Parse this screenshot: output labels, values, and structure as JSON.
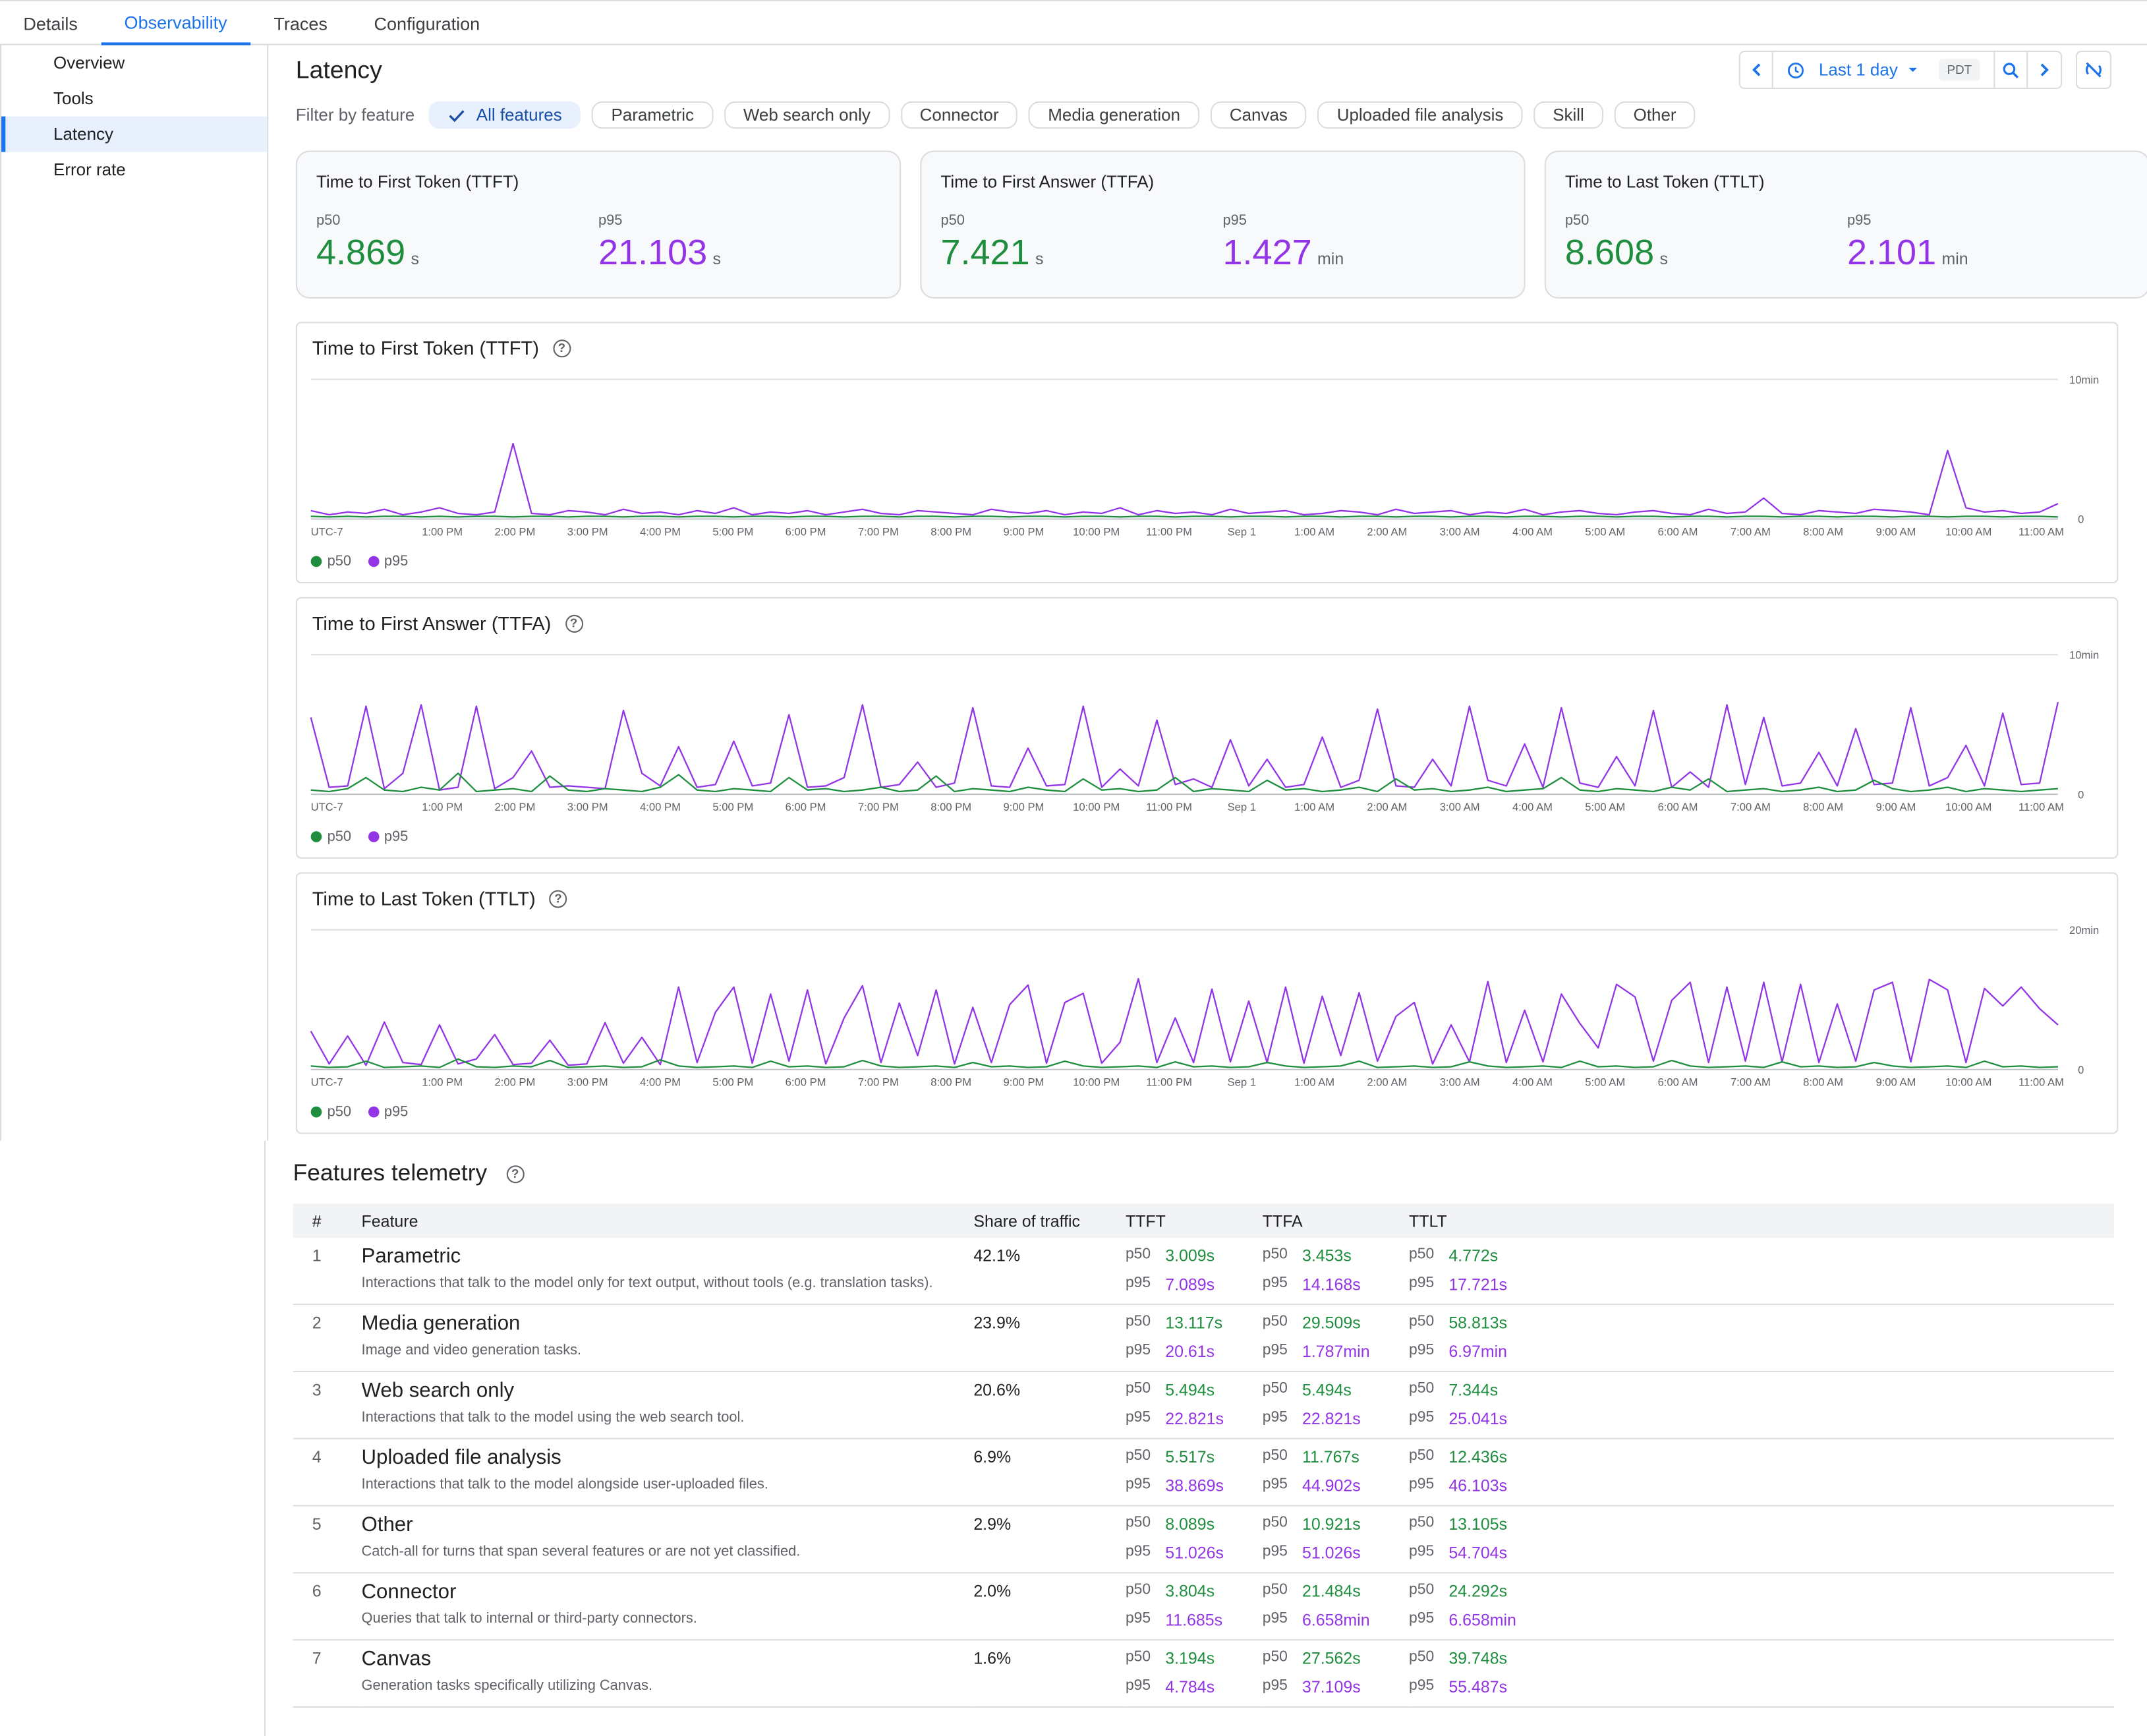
{
  "tabs": [
    "Details",
    "Observability",
    "Traces",
    "Configuration"
  ],
  "sidebar": [
    "Overview",
    "Tools",
    "Latency",
    "Error rate"
  ],
  "page_title": "Latency",
  "timebar": {
    "range": "Last 1 day",
    "tz": "PDT"
  },
  "filter_label": "Filter by feature",
  "filters": [
    "All features",
    "Parametric",
    "Web search only",
    "Connector",
    "Media generation",
    "Canvas",
    "Uploaded file analysis",
    "Skill",
    "Other"
  ],
  "cards": [
    {
      "title": "Time to First Token (TTFT)",
      "p50": "4.869",
      "p50_unit": "s",
      "p95": "21.103",
      "p95_unit": "s"
    },
    {
      "title": "Time to First Answer (TTFA)",
      "p50": "7.421",
      "p50_unit": "s",
      "p95": "1.427",
      "p95_unit": "min"
    },
    {
      "title": "Time to Last Token (TTLT)",
      "p50": "8.608",
      "p50_unit": "s",
      "p95": "2.101",
      "p95_unit": "min"
    }
  ],
  "p50_label": "p50",
  "p95_label": "p95",
  "colors": {
    "p50": "#1e8e3e",
    "p95": "#9334e6",
    "accent": "#1a73e8"
  },
  "x_ticks": [
    "UTC-7",
    "1:00 PM",
    "2:00 PM",
    "3:00 PM",
    "4:00 PM",
    "5:00 PM",
    "6:00 PM",
    "7:00 PM",
    "8:00 PM",
    "9:00 PM",
    "10:00 PM",
    "11:00 PM",
    "Sep 1",
    "1:00 AM",
    "2:00 AM",
    "3:00 AM",
    "4:00 AM",
    "5:00 AM",
    "6:00 AM",
    "7:00 AM",
    "8:00 AM",
    "9:00 AM",
    "10:00 AM",
    "11:00 AM"
  ],
  "chart_data": [
    {
      "type": "line",
      "title": "Time to First Token (TTFT)",
      "y_ticks": [
        "10min",
        "0"
      ],
      "ylim_min": [
        0,
        10
      ],
      "series": [
        {
          "name": "p50",
          "values": [
            0.2,
            0.15,
            0.2,
            0.15,
            0.2,
            0.2,
            0.15,
            0.2,
            0.15,
            0.2,
            0.2,
            0.15,
            0.2,
            0.2,
            0.15,
            0.2,
            0.2,
            0.15,
            0.2,
            0.2,
            0.15,
            0.2,
            0.2,
            0.15,
            0.2,
            0.2,
            0.15,
            0.2,
            0.2,
            0.15,
            0.2,
            0.2,
            0.15,
            0.2,
            0.2,
            0.15,
            0.2,
            0.2,
            0.15,
            0.2,
            0.2,
            0.15,
            0.2,
            0.2,
            0.15,
            0.2,
            0.2,
            0.15,
            0.2,
            0.2,
            0.15,
            0.2,
            0.2,
            0.15,
            0.2,
            0.2,
            0.15,
            0.2,
            0.2,
            0.15,
            0.2,
            0.2,
            0.15,
            0.2,
            0.2,
            0.15,
            0.2,
            0.2,
            0.15,
            0.2,
            0.2,
            0.15,
            0.2,
            0.2,
            0.15,
            0.2,
            0.2,
            0.15,
            0.2,
            0.2,
            0.15,
            0.2,
            0.2,
            0.15,
            0.2,
            0.2,
            0.15,
            0.2,
            0.2,
            0.15,
            0.2,
            0.2,
            0.15,
            0.2,
            0.2,
            0.15
          ]
        },
        {
          "name": "p95",
          "values": [
            0.6,
            0.3,
            0.5,
            0.4,
            0.7,
            0.3,
            0.5,
            0.8,
            0.4,
            0.3,
            0.5,
            5.4,
            0.4,
            0.3,
            0.6,
            0.5,
            0.3,
            0.7,
            0.4,
            0.5,
            0.3,
            0.6,
            0.4,
            0.8,
            0.3,
            0.5,
            0.4,
            0.6,
            0.3,
            0.5,
            0.7,
            0.4,
            0.3,
            0.6,
            0.5,
            0.4,
            0.3,
            0.7,
            0.5,
            0.4,
            0.6,
            0.3,
            0.5,
            0.4,
            0.8,
            0.3,
            0.6,
            0.4,
            0.5,
            0.3,
            0.7,
            0.4,
            0.5,
            0.6,
            0.3,
            0.4,
            0.6,
            0.5,
            0.3,
            0.7,
            0.4,
            0.5,
            0.6,
            0.3,
            0.5,
            0.4,
            0.7,
            0.3,
            0.5,
            0.6,
            0.4,
            0.3,
            0.5,
            0.6,
            0.4,
            0.3,
            0.7,
            0.4,
            0.5,
            1.5,
            0.4,
            0.3,
            0.6,
            0.5,
            0.4,
            0.7,
            0.6,
            0.5,
            0.3,
            4.9,
            0.8,
            0.5,
            0.6,
            0.4,
            0.5,
            1.1
          ]
        }
      ]
    },
    {
      "type": "line",
      "title": "Time to First Answer (TTFA)",
      "y_ticks": [
        "10min",
        "0"
      ],
      "ylim_min": [
        0,
        10
      ],
      "series": [
        {
          "name": "p50",
          "values": [
            0.3,
            0.2,
            0.4,
            1.2,
            0.3,
            0.2,
            0.5,
            0.3,
            1.5,
            0.2,
            0.3,
            0.4,
            0.2,
            1.3,
            0.3,
            0.2,
            0.4,
            0.3,
            0.2,
            0.5,
            1.4,
            0.3,
            0.2,
            0.4,
            0.3,
            0.2,
            1.2,
            0.3,
            0.4,
            0.2,
            0.3,
            0.5,
            0.2,
            0.3,
            1.3,
            0.2,
            0.4,
            0.3,
            0.2,
            0.5,
            0.3,
            0.2,
            1.1,
            0.3,
            0.4,
            0.2,
            0.3,
            1.2,
            0.2,
            0.4,
            0.3,
            0.2,
            1.0,
            0.3,
            0.4,
            0.2,
            0.3,
            0.5,
            0.2,
            1.1,
            0.3,
            0.4,
            0.2,
            0.3,
            0.5,
            0.2,
            0.3,
            0.4,
            1.2,
            0.3,
            0.2,
            0.4,
            0.3,
            0.2,
            0.5,
            0.3,
            1.1,
            0.2,
            0.3,
            0.4,
            0.2,
            0.3,
            0.5,
            0.2,
            0.3,
            1.0,
            0.4,
            0.2,
            0.3,
            0.5,
            0.2,
            0.4,
            0.3,
            0.2,
            0.3,
            0.4
          ]
        },
        {
          "name": "p95",
          "values": [
            5.5,
            0.5,
            0.6,
            6.3,
            0.4,
            1.5,
            6.4,
            0.3,
            0.5,
            6.3,
            0.4,
            1.2,
            3.1,
            0.5,
            0.6,
            0.5,
            0.4,
            6.0,
            1.5,
            0.6,
            3.4,
            0.5,
            0.7,
            3.8,
            0.6,
            0.8,
            5.7,
            0.5,
            0.6,
            1.2,
            6.4,
            0.5,
            0.7,
            2.3,
            0.5,
            0.8,
            6.2,
            0.6,
            0.5,
            3.3,
            0.6,
            0.7,
            6.3,
            0.5,
            1.8,
            0.6,
            5.3,
            0.7,
            1.1,
            0.5,
            3.9,
            0.6,
            2.5,
            0.5,
            0.7,
            4.1,
            0.5,
            1.0,
            6.1,
            0.6,
            0.5,
            2.5,
            0.6,
            6.3,
            1.0,
            0.6,
            3.6,
            0.5,
            6.2,
            0.8,
            0.5,
            2.7,
            0.6,
            6.0,
            0.5,
            1.6,
            0.5,
            6.4,
            0.7,
            5.5,
            0.6,
            0.8,
            3.0,
            0.6,
            4.7,
            0.7,
            0.8,
            6.2,
            0.6,
            1.2,
            3.5,
            0.6,
            5.8,
            0.7,
            0.8,
            6.6
          ]
        }
      ]
    },
    {
      "type": "line",
      "title": "Time to Last Token (TTLT)",
      "y_ticks": [
        "20min",
        "0"
      ],
      "ylim_min": [
        0,
        20
      ],
      "series": [
        {
          "name": "p50",
          "values": [
            0.5,
            0.3,
            0.4,
            1.2,
            0.3,
            0.4,
            0.5,
            0.3,
            1.5,
            0.4,
            0.3,
            0.5,
            0.4,
            1.3,
            0.3,
            0.4,
            0.5,
            0.3,
            0.4,
            1.4,
            0.5,
            0.3,
            0.4,
            0.5,
            0.3,
            1.2,
            0.4,
            0.5,
            0.3,
            0.4,
            1.3,
            0.5,
            0.3,
            0.4,
            0.5,
            0.3,
            1.0,
            0.4,
            0.5,
            0.3,
            0.4,
            1.2,
            0.5,
            0.3,
            0.4,
            0.5,
            0.3,
            1.1,
            0.4,
            0.5,
            0.3,
            0.4,
            1.0,
            0.5,
            0.3,
            0.4,
            0.5,
            1.2,
            0.3,
            0.4,
            0.5,
            0.3,
            0.4,
            1.1,
            0.5,
            0.3,
            0.4,
            0.5,
            0.3,
            1.2,
            0.4,
            0.5,
            0.3,
            0.4,
            1.3,
            0.5,
            0.3,
            0.4,
            0.5,
            0.3,
            1.1,
            0.4,
            0.5,
            0.3,
            0.4,
            1.0,
            0.5,
            0.3,
            0.4,
            0.5,
            0.3,
            1.2,
            0.4,
            0.5,
            0.3,
            0.4
          ]
        },
        {
          "name": "p95",
          "values": [
            5.5,
            0.8,
            4.8,
            0.6,
            6.8,
            1.0,
            0.7,
            6.4,
            0.8,
            1.5,
            5.0,
            0.7,
            0.9,
            4.2,
            0.6,
            0.8,
            6.7,
            0.9,
            4.6,
            0.7,
            11.8,
            1.0,
            8.2,
            11.8,
            0.9,
            10.8,
            1.2,
            11.4,
            0.8,
            7.4,
            12.0,
            1.0,
            9.5,
            2.0,
            11.4,
            0.8,
            8.9,
            1.0,
            9.3,
            12.1,
            0.9,
            9.6,
            10.9,
            0.9,
            3.9,
            13.0,
            1.0,
            7.4,
            1.0,
            11.5,
            1.1,
            9.8,
            1.0,
            11.8,
            0.9,
            10.5,
            2.0,
            11.0,
            1.2,
            7.6,
            9.6,
            0.8,
            6.4,
            1.1,
            12.6,
            1.0,
            8.5,
            1.1,
            10.8,
            6.6,
            3.1,
            12.2,
            10.4,
            1.2,
            9.9,
            12.5,
            1.0,
            11.8,
            1.2,
            12.5,
            1.1,
            12.2,
            1.0,
            9.4,
            1.2,
            11.4,
            12.5,
            1.1,
            12.9,
            11.4,
            1.0,
            11.6,
            9.1,
            11.8,
            8.7,
            6.4
          ]
        }
      ]
    }
  ],
  "features": {
    "title": "Features telemetry",
    "headers": [
      "#",
      "Feature",
      "Share of traffic",
      "TTFT",
      "TTFA",
      "TTLT"
    ],
    "rows": [
      {
        "n": "1",
        "name": "Parametric",
        "desc": "Interactions that talk to the model only for text output, without tools (e.g. translation tasks).",
        "share": "42.1%",
        "ttft": [
          "3.009s",
          "7.089s"
        ],
        "ttfa": [
          "3.453s",
          "14.168s"
        ],
        "ttlt": [
          "4.772s",
          "17.721s"
        ]
      },
      {
        "n": "2",
        "name": "Media generation",
        "desc": "Image and video generation tasks.",
        "share": "23.9%",
        "ttft": [
          "13.117s",
          "20.61s"
        ],
        "ttfa": [
          "29.509s",
          "1.787min"
        ],
        "ttlt": [
          "58.813s",
          "6.97min"
        ]
      },
      {
        "n": "3",
        "name": "Web search only",
        "desc": "Interactions that talk to the model using the web search tool.",
        "share": "20.6%",
        "ttft": [
          "5.494s",
          "22.821s"
        ],
        "ttfa": [
          "5.494s",
          "22.821s"
        ],
        "ttlt": [
          "7.344s",
          "25.041s"
        ]
      },
      {
        "n": "4",
        "name": "Uploaded file analysis",
        "desc": "Interactions that talk to the model alongside user-uploaded files.",
        "share": "6.9%",
        "ttft": [
          "5.517s",
          "38.869s"
        ],
        "ttfa": [
          "11.767s",
          "44.902s"
        ],
        "ttlt": [
          "12.436s",
          "46.103s"
        ]
      },
      {
        "n": "5",
        "name": "Other",
        "desc": "Catch-all for turns that span several features or are not yet classified.",
        "share": "2.9%",
        "ttft": [
          "8.089s",
          "51.026s"
        ],
        "ttfa": [
          "10.921s",
          "51.026s"
        ],
        "ttlt": [
          "13.105s",
          "54.704s"
        ]
      },
      {
        "n": "6",
        "name": "Connector",
        "desc": "Queries that talk to internal or third-party connectors.",
        "share": "2.0%",
        "ttft": [
          "3.804s",
          "11.685s"
        ],
        "ttfa": [
          "21.484s",
          "6.658min"
        ],
        "ttlt": [
          "24.292s",
          "6.658min"
        ]
      },
      {
        "n": "7",
        "name": "Canvas",
        "desc": "Generation tasks specifically utilizing Canvas.",
        "share": "1.6%",
        "ttft": [
          "3.194s",
          "4.784s"
        ],
        "ttfa": [
          "27.562s",
          "37.109s"
        ],
        "ttlt": [
          "39.748s",
          "55.487s"
        ]
      }
    ]
  }
}
